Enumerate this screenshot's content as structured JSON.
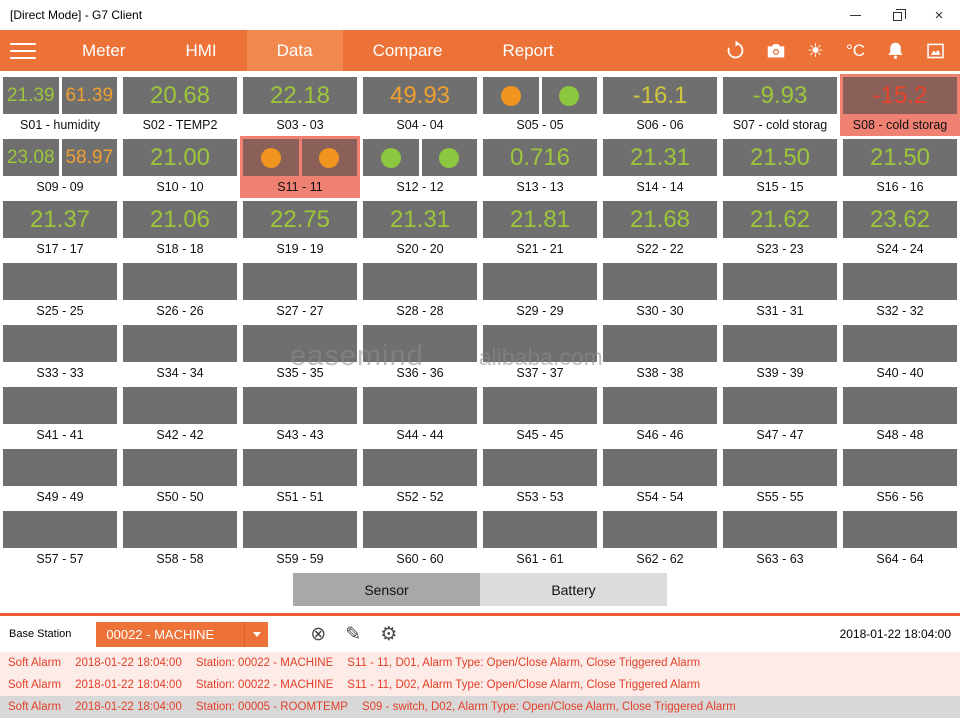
{
  "window": {
    "title": "[Direct Mode] - G7 Client",
    "close_glyph": "×"
  },
  "nav": {
    "tabs": [
      {
        "label": "Meter",
        "active": false
      },
      {
        "label": "HMI",
        "active": false
      },
      {
        "label": "Data",
        "active": true
      },
      {
        "label": "Compare",
        "active": false
      },
      {
        "label": "Report",
        "active": false
      }
    ],
    "unit_label": "°C"
  },
  "icons": {
    "sun": "☀",
    "clear": "⊗",
    "edit": "✎",
    "settings": "⚙"
  },
  "colors": {
    "accent": "#ed7237",
    "accent_active": "#f1894f",
    "green": "#9dc63b",
    "orange": "#f0a032",
    "yellow": "#cfc43c",
    "red": "#e8432a",
    "box_bg": "#6e6f6e",
    "alarm_tile_bg": "#ef8173",
    "alarm_box_bg": "#8a6058",
    "green_dot": "#8dc63f",
    "orange_dot": "#f0941f",
    "alarm_text": "#e2402a",
    "separator": "#ed5b35"
  },
  "grid": {
    "tiles": [
      {
        "label": "S01 - humidity",
        "type": "dual",
        "values": [
          {
            "v": "21.39",
            "c": "green"
          },
          {
            "v": "61.39",
            "c": "orange"
          }
        ]
      },
      {
        "label": "S02 - TEMP2",
        "type": "value",
        "value": "20.68",
        "c": "green"
      },
      {
        "label": "S03 - 03",
        "type": "value",
        "value": "22.18",
        "c": "green"
      },
      {
        "label": "S04 - 04",
        "type": "value",
        "value": "49.93",
        "c": "orange"
      },
      {
        "label": "S05 - 05",
        "type": "circles",
        "circles": [
          "orange",
          "green"
        ]
      },
      {
        "label": "S06 - 06",
        "type": "value",
        "value": "-16.1",
        "c": "yellow"
      },
      {
        "label": "S07 - cold storag",
        "type": "value",
        "value": "-9.93",
        "c": "green"
      },
      {
        "label": "S08 - cold storag",
        "type": "value",
        "value": "-15.2",
        "c": "red",
        "alarm": true
      },
      {
        "label": "S09 - 09",
        "type": "dual",
        "values": [
          {
            "v": "23.08",
            "c": "green"
          },
          {
            "v": "58.97",
            "c": "orange"
          }
        ]
      },
      {
        "label": "S10 - 10",
        "type": "value",
        "value": "21.00",
        "c": "green"
      },
      {
        "label": "S11 - 11",
        "type": "circles",
        "circles": [
          "orange",
          "orange"
        ],
        "alarm": true
      },
      {
        "label": "S12 - 12",
        "type": "circles",
        "circles": [
          "green",
          "green"
        ]
      },
      {
        "label": "S13 - 13",
        "type": "value",
        "value": "0.716",
        "c": "green"
      },
      {
        "label": "S14 - 14",
        "type": "value",
        "value": "21.31",
        "c": "green"
      },
      {
        "label": "S15 - 15",
        "type": "value",
        "value": "21.50",
        "c": "green"
      },
      {
        "label": "S16 - 16",
        "type": "value",
        "value": "21.50",
        "c": "green"
      },
      {
        "label": "S17 - 17",
        "type": "value",
        "value": "21.37",
        "c": "green"
      },
      {
        "label": "S18 - 18",
        "type": "value",
        "value": "21.06",
        "c": "green"
      },
      {
        "label": "S19 - 19",
        "type": "value",
        "value": "22.75",
        "c": "green"
      },
      {
        "label": "S20 - 20",
        "type": "value",
        "value": "21.31",
        "c": "green"
      },
      {
        "label": "S21 - 21",
        "type": "value",
        "value": "21.81",
        "c": "green"
      },
      {
        "label": "S22 - 22",
        "type": "value",
        "value": "21.68",
        "c": "green"
      },
      {
        "label": "S23 - 23",
        "type": "value",
        "value": "21.62",
        "c": "green"
      },
      {
        "label": "S24 - 24",
        "type": "value",
        "value": "23.62",
        "c": "green"
      },
      {
        "label": "S25 - 25",
        "type": "empty"
      },
      {
        "label": "S26 - 26",
        "type": "empty"
      },
      {
        "label": "S27 - 27",
        "type": "empty"
      },
      {
        "label": "S28 - 28",
        "type": "empty"
      },
      {
        "label": "S29 - 29",
        "type": "empty"
      },
      {
        "label": "S30 - 30",
        "type": "empty"
      },
      {
        "label": "S31 - 31",
        "type": "empty"
      },
      {
        "label": "S32 - 32",
        "type": "empty"
      },
      {
        "label": "S33 - 33",
        "type": "empty"
      },
      {
        "label": "S34 - 34",
        "type": "empty"
      },
      {
        "label": "S35 - 35",
        "type": "empty"
      },
      {
        "label": "S36 - 36",
        "type": "empty"
      },
      {
        "label": "S37 - 37",
        "type": "empty"
      },
      {
        "label": "S38 - 38",
        "type": "empty"
      },
      {
        "label": "S39 - 39",
        "type": "empty"
      },
      {
        "label": "S40 - 40",
        "type": "empty"
      },
      {
        "label": "S41 - 41",
        "type": "empty"
      },
      {
        "label": "S42 - 42",
        "type": "empty"
      },
      {
        "label": "S43 - 43",
        "type": "empty"
      },
      {
        "label": "S44 - 44",
        "type": "empty"
      },
      {
        "label": "S45 - 45",
        "type": "empty"
      },
      {
        "label": "S46 - 46",
        "type": "empty"
      },
      {
        "label": "S47 - 47",
        "type": "empty"
      },
      {
        "label": "S48 - 48",
        "type": "empty"
      },
      {
        "label": "S49 - 49",
        "type": "empty"
      },
      {
        "label": "S50 - 50",
        "type": "empty"
      },
      {
        "label": "S51 - 51",
        "type": "empty"
      },
      {
        "label": "S52 - 52",
        "type": "empty"
      },
      {
        "label": "S53 - 53",
        "type": "empty"
      },
      {
        "label": "S54 - 54",
        "type": "empty"
      },
      {
        "label": "S55 - 55",
        "type": "empty"
      },
      {
        "label": "S56 - 56",
        "type": "empty"
      },
      {
        "label": "S57 - 57",
        "type": "empty"
      },
      {
        "label": "S58 - 58",
        "type": "empty"
      },
      {
        "label": "S59 - 59",
        "type": "empty"
      },
      {
        "label": "S60 - 60",
        "type": "empty"
      },
      {
        "label": "S61 - 61",
        "type": "empty"
      },
      {
        "label": "S62 - 62",
        "type": "empty"
      },
      {
        "label": "S63 - 63",
        "type": "empty"
      },
      {
        "label": "S64 - 64",
        "type": "empty"
      }
    ]
  },
  "watermark": {
    "brand": "easemind",
    "site": "alibaba.com"
  },
  "view_buttons": [
    {
      "label": "Sensor",
      "active": true
    },
    {
      "label": "Battery",
      "active": false
    }
  ],
  "base_station": {
    "label": "Base Station",
    "selected": "00022 - MACHINE",
    "timestamp": "2018-01-22 18:04:00"
  },
  "alarms": [
    {
      "type": "Soft Alarm",
      "time": "2018-01-22 18:04:00",
      "station": "Station: 00022 - MACHINE",
      "detail": "S11 - 11, D01, Alarm Type: Open/Close Alarm, Close Triggered Alarm"
    },
    {
      "type": "Soft Alarm",
      "time": "2018-01-22 18:04:00",
      "station": "Station: 00022 - MACHINE",
      "detail": "S11 - 11, D02, Alarm Type: Open/Close Alarm, Close Triggered Alarm"
    },
    {
      "type": "Soft Alarm",
      "time": "2018-01-22 18:04:00",
      "station": "Station: 00005 - ROOMTEMP",
      "detail": "S09 - switch, D02, Alarm Type: Open/Close Alarm, Close Triggered Alarm"
    }
  ]
}
